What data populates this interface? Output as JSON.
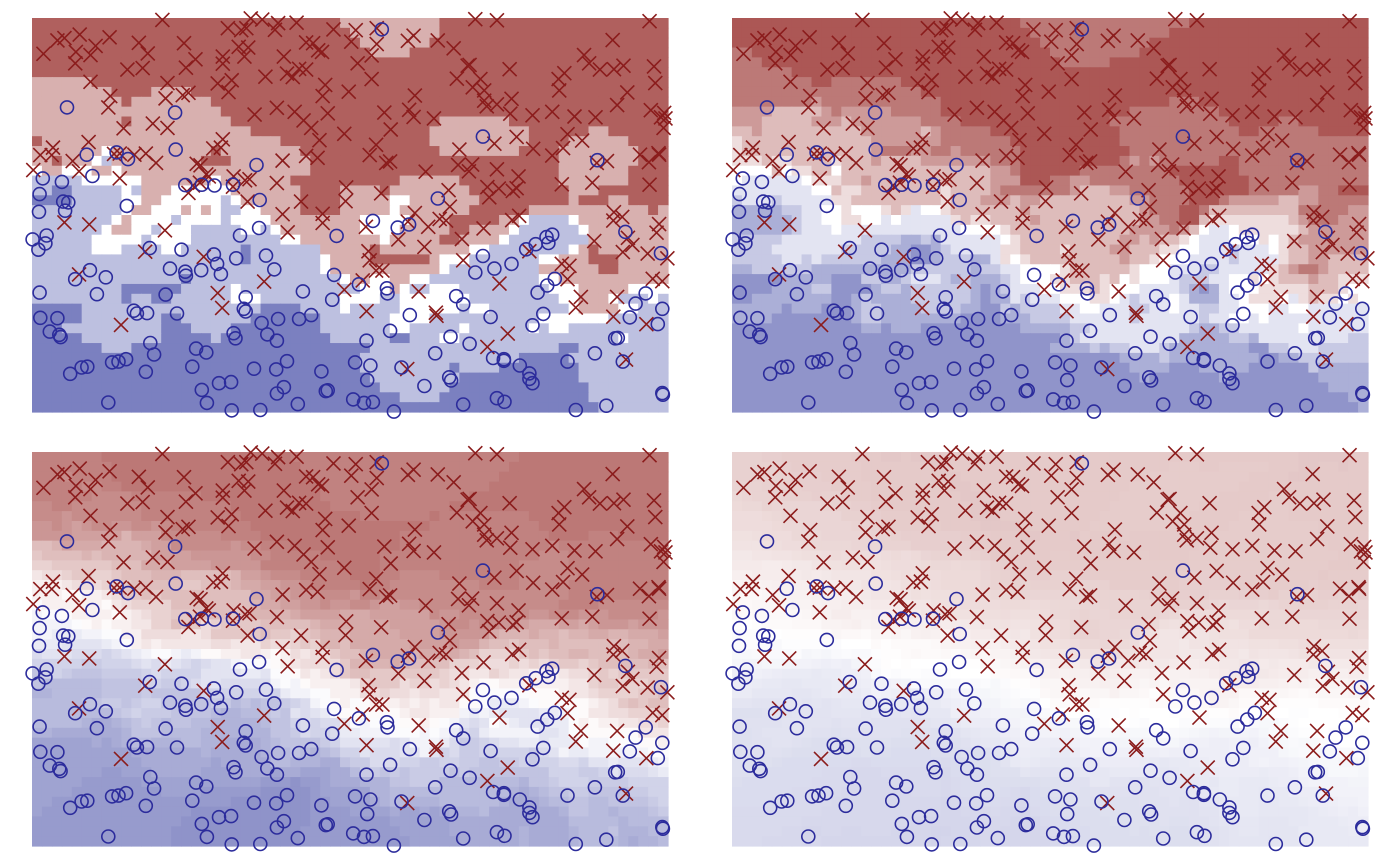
{
  "figure": {
    "description_visible_text": ""
  },
  "colors": {
    "class_x": "#8b1c1c",
    "class_o": "#2c2c9c",
    "field_red": "#b0605e",
    "field_blue": "#7b80c0",
    "background": "#ffffff"
  },
  "chart_data": [
    {
      "type": "scatter",
      "title": "",
      "xlabel": "",
      "ylabel": "",
      "xlim": [
        0,
        1
      ],
      "ylim": [
        0,
        1
      ],
      "grid": false,
      "legend": "none",
      "background": "decision-field",
      "field_style": "blocky",
      "field_levels": 4,
      "field_strength": 1.0,
      "field_smoothing": 2,
      "series": [
        {
          "marker": "x",
          "points": []
        },
        {
          "marker": "o",
          "points": []
        }
      ]
    },
    {
      "type": "scatter",
      "title": "",
      "xlabel": "",
      "ylabel": "",
      "xlim": [
        0,
        1
      ],
      "ylim": [
        0,
        1
      ],
      "grid": false,
      "legend": "none",
      "background": "decision-field",
      "field_style": "blocky",
      "field_levels": 9,
      "field_strength": 0.95,
      "field_smoothing": 4,
      "series": [
        {
          "marker": "x",
          "points": []
        },
        {
          "marker": "o",
          "points": []
        }
      ]
    },
    {
      "type": "scatter",
      "title": "",
      "xlabel": "",
      "ylabel": "",
      "xlim": [
        0,
        1
      ],
      "ylim": [
        0,
        1
      ],
      "grid": false,
      "legend": "none",
      "background": "decision-field",
      "field_style": "smooth",
      "field_levels": 40,
      "field_strength": 0.85,
      "field_smoothing": 9,
      "series": [
        {
          "marker": "x",
          "points": []
        },
        {
          "marker": "o",
          "points": []
        }
      ]
    },
    {
      "type": "scatter",
      "title": "",
      "xlabel": "",
      "ylabel": "",
      "xlim": [
        0,
        1
      ],
      "ylim": [
        0,
        1
      ],
      "grid": false,
      "legend": "none",
      "background": "decision-field",
      "field_style": "smooth",
      "field_levels": 40,
      "field_strength": 0.35,
      "field_smoothing": 16,
      "series": [
        {
          "marker": "x",
          "points": []
        },
        {
          "marker": "o",
          "points": []
        }
      ]
    }
  ]
}
